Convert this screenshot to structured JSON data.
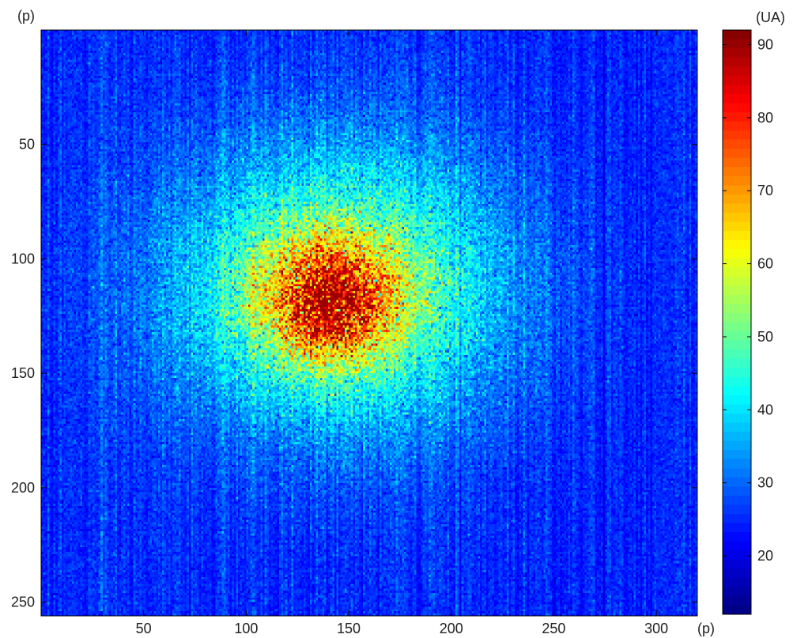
{
  "chart_data": {
    "type": "heatmap",
    "title": "",
    "x_unit": "(p)",
    "y_unit": "(p)",
    "colorbar_unit": "(UA)",
    "xlim": [
      0,
      320
    ],
    "ylim": [
      0,
      256
    ],
    "y_inverted": true,
    "x_ticks": [
      50,
      100,
      150,
      200,
      250,
      300
    ],
    "y_ticks": [
      50,
      100,
      150,
      200,
      250
    ],
    "colorbar_range": [
      12,
      92
    ],
    "colorbar_ticks": [
      20,
      30,
      40,
      50,
      60,
      70,
      80,
      90
    ],
    "colormap": "jet",
    "grid": false,
    "background_level": 25,
    "features": [
      {
        "kind": "gaussian_blob",
        "center_x": 145,
        "center_y": 112,
        "sigma_x": 55,
        "sigma_y": 42,
        "amplitude": 30
      },
      {
        "kind": "gaussian_blob",
        "center_x": 140,
        "center_y": 118,
        "sigma_x": 22,
        "sigma_y": 18,
        "amplitude": 35
      },
      {
        "kind": "peak_region",
        "center_x": 142,
        "center_y": 122,
        "max_value": 88
      }
    ]
  }
}
